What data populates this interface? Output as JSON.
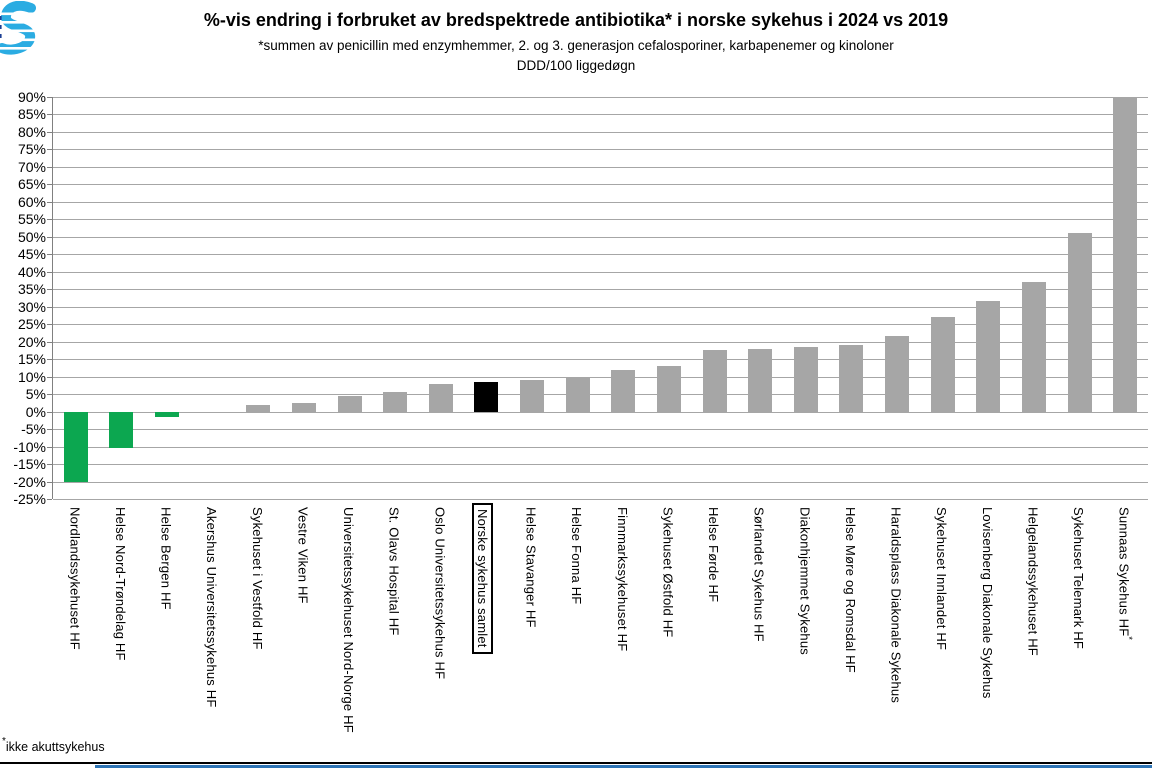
{
  "header": {
    "title": "%-vis endring i forbruket av bredspektrede antibiotika* i norske sykehus i 2024 vs 2019",
    "subtitle": "*summen av penicillin med enzymhemmer, 2. og 3. generasjon cefalosporiner, karbapenemer og kinoloner",
    "unit_line": "DDD/100 liggedøgn"
  },
  "footnote": {
    "marker": "*",
    "text": "ikke akuttsykehus"
  },
  "colors": {
    "logo_blue": "#2BACE2",
    "logo_dark": "#1C3F94",
    "footer_strip": "#2E75B6",
    "gridline": "#A6A6A6",
    "axis": "#808080"
  },
  "chart_data": {
    "type": "bar",
    "title": "%-vis endring i forbruket av bredspektrede antibiotika* i norske sykehus i 2024 vs 2019",
    "xlabel": "",
    "ylabel": "",
    "y_axis": {
      "min": -25,
      "max": 90,
      "step": 5,
      "tick_suffix": "%"
    },
    "grid": true,
    "legend": "none",
    "palette": {
      "green": "#0CA750",
      "gray": "#A6A6A6",
      "black": "#000000"
    },
    "highlight_category": "Norske sykehus samlet",
    "categories": [
      "Nordlandssykehuset HF",
      "Helse Nord-Trøndelag HF",
      "Helse Bergen HF",
      "Akershus Universitetssykehus HF",
      "Sykehuset i Vestfold HF",
      "Vestre Viken HF",
      "Universitetssykehuset Nord-Norge HF",
      "St. Olavs Hospital HF",
      "Oslo Universitetssykehus HF",
      "Norske sykehus samlet",
      "Helse Stavanger HF",
      "Helse Fonna HF",
      "Finnmarkssykehuset HF",
      "Sykehuset Østfold HF",
      "Helse Førde HF",
      "Sørlandet Sykehus HF",
      "Diakonhjemmet Sykehus",
      "Helse Møre og Romsdal HF",
      "Haraldsplass Diakonale Sykehus",
      "Sykehuset Innlandet HF",
      "Lovisenberg Diakonale Sykehus",
      "Helgelandssykehuset HF",
      "Sykehuset Telemark HF",
      "Sunnaas Sykehus HF*"
    ],
    "values": [
      -20,
      -10.5,
      -1.5,
      0,
      2,
      2.5,
      4.5,
      5.5,
      8,
      8.5,
      9,
      10,
      12,
      13,
      17.5,
      18,
      18.5,
      19,
      21.5,
      27,
      31.5,
      37,
      51,
      90
    ],
    "bar_colors": [
      "green",
      "green",
      "green",
      "gray",
      "gray",
      "gray",
      "gray",
      "gray",
      "gray",
      "black",
      "gray",
      "gray",
      "gray",
      "gray",
      "gray",
      "gray",
      "gray",
      "gray",
      "gray",
      "gray",
      "gray",
      "gray",
      "gray",
      "gray"
    ]
  }
}
